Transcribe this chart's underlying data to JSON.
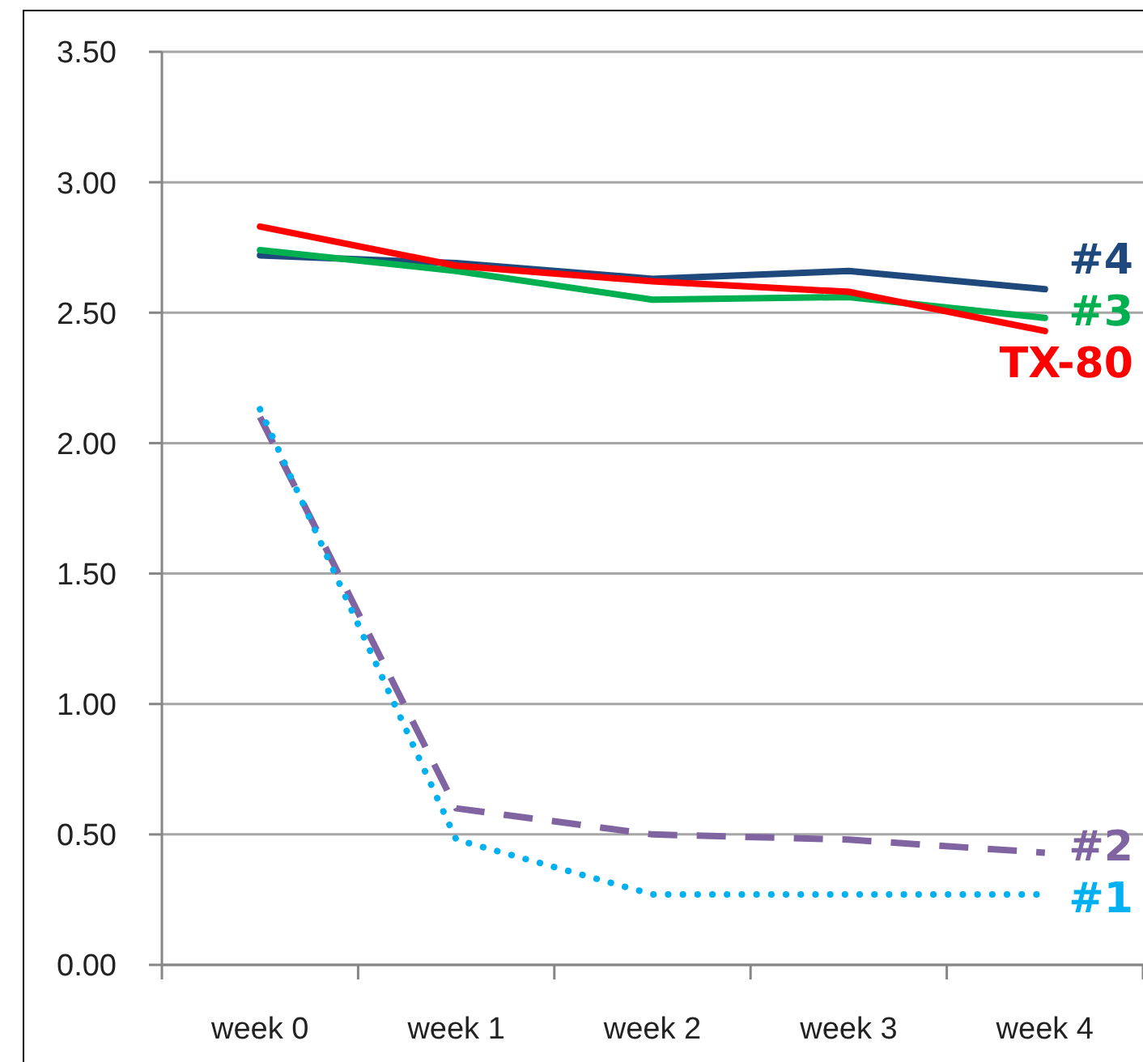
{
  "chart_data": {
    "type": "line",
    "categories": [
      "week 0",
      "week 1",
      "week 2",
      "week 3",
      "week 4"
    ],
    "series": [
      {
        "name": "#4",
        "color": "#1f497d",
        "values": [
          2.72,
          2.69,
          2.63,
          2.66,
          2.59
        ],
        "line_style": "solid"
      },
      {
        "name": "#3",
        "color": "#00b050",
        "values": [
          2.74,
          2.66,
          2.55,
          2.56,
          2.48
        ],
        "line_style": "solid"
      },
      {
        "name": "TX-80",
        "color": "#ff0000",
        "values": [
          2.83,
          2.68,
          2.62,
          2.58,
          2.43
        ],
        "line_style": "solid"
      },
      {
        "name": "#2",
        "color": "#8064a2",
        "values": [
          2.1,
          0.6,
          0.5,
          0.48,
          0.43
        ],
        "line_style": "dashed"
      },
      {
        "name": "#1",
        "color": "#00b0f0",
        "values": [
          2.13,
          0.48,
          0.27,
          0.27,
          0.27
        ],
        "line_style": "dotted"
      }
    ],
    "ylim": [
      0,
      3.5
    ],
    "yticks": [
      {
        "value": 0,
        "label": "0.00"
      },
      {
        "value": 0.5,
        "label": "0.50"
      },
      {
        "value": 1,
        "label": "1.00"
      },
      {
        "value": 1.5,
        "label": "1.50"
      },
      {
        "value": 2,
        "label": "2.00"
      },
      {
        "value": 2.5,
        "label": "2.50"
      },
      {
        "value": 3,
        "label": "3.00"
      },
      {
        "value": 3.5,
        "label": "3.50"
      }
    ],
    "grid": "y",
    "marker": "none"
  }
}
